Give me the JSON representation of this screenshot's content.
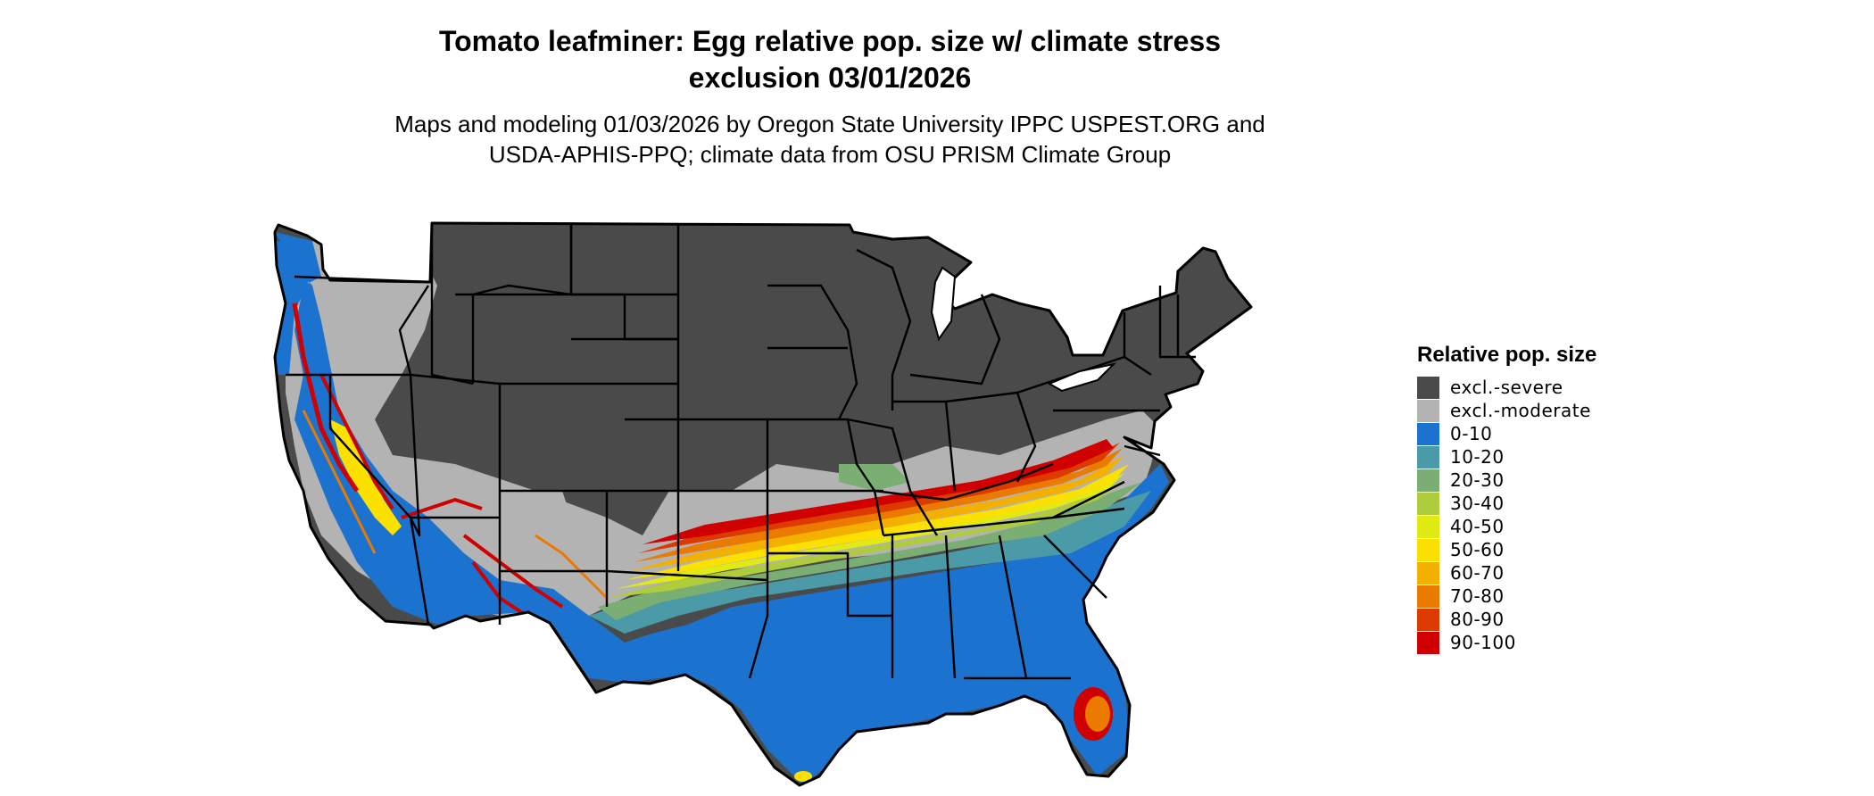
{
  "title_line1": "Tomato leafminer: Egg relative pop. size w/ climate stress",
  "title_line2": "exclusion 03/01/2026",
  "subtitle_line1": "Maps and modeling 01/03/2026 by Oregon State University IPPC USPEST.ORG and",
  "subtitle_line2": "USDA-APHIS-PPQ; climate data from OSU PRISM Climate Group",
  "legend": {
    "title": "Relative pop. size",
    "items": [
      {
        "label": "excl.-severe",
        "color": "#4a4a4a"
      },
      {
        "label": "excl.-moderate",
        "color": "#b3b3b3"
      },
      {
        "label": "0-10",
        "color": "#1b72cf"
      },
      {
        "label": "10-20",
        "color": "#4a9aa8"
      },
      {
        "label": "20-30",
        "color": "#7aae72"
      },
      {
        "label": "30-40",
        "color": "#aecc3c"
      },
      {
        "label": "40-50",
        "color": "#e2ea14"
      },
      {
        "label": "50-60",
        "color": "#fbe000"
      },
      {
        "label": "60-70",
        "color": "#f4b000"
      },
      {
        "label": "70-80",
        "color": "#eb7a00"
      },
      {
        "label": "80-90",
        "color": "#dd3a00"
      },
      {
        "label": "90-100",
        "color": "#d00000"
      }
    ]
  }
}
